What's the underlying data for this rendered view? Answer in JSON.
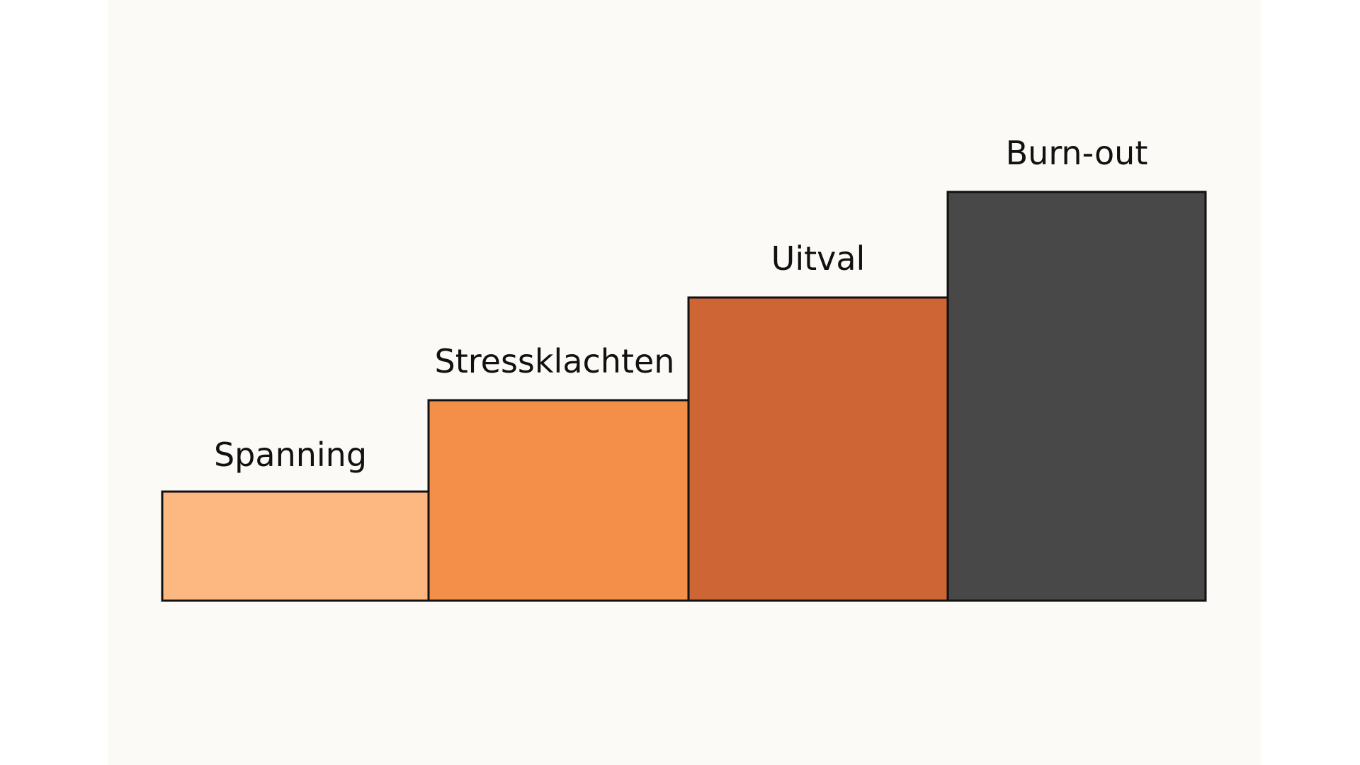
{
  "steps": [
    {
      "label": "Spanning",
      "level": 1,
      "color": "#FDB882"
    },
    {
      "label": "Stressklachten",
      "level": 2,
      "color": "#F48F4A"
    },
    {
      "label": "Uitval",
      "level": 3,
      "color": "#CE6534"
    },
    {
      "label": "Burn-out",
      "level": 4,
      "color": "#484848"
    }
  ],
  "colors": {
    "panel": "#FBFAF7",
    "outline": "#111111"
  }
}
